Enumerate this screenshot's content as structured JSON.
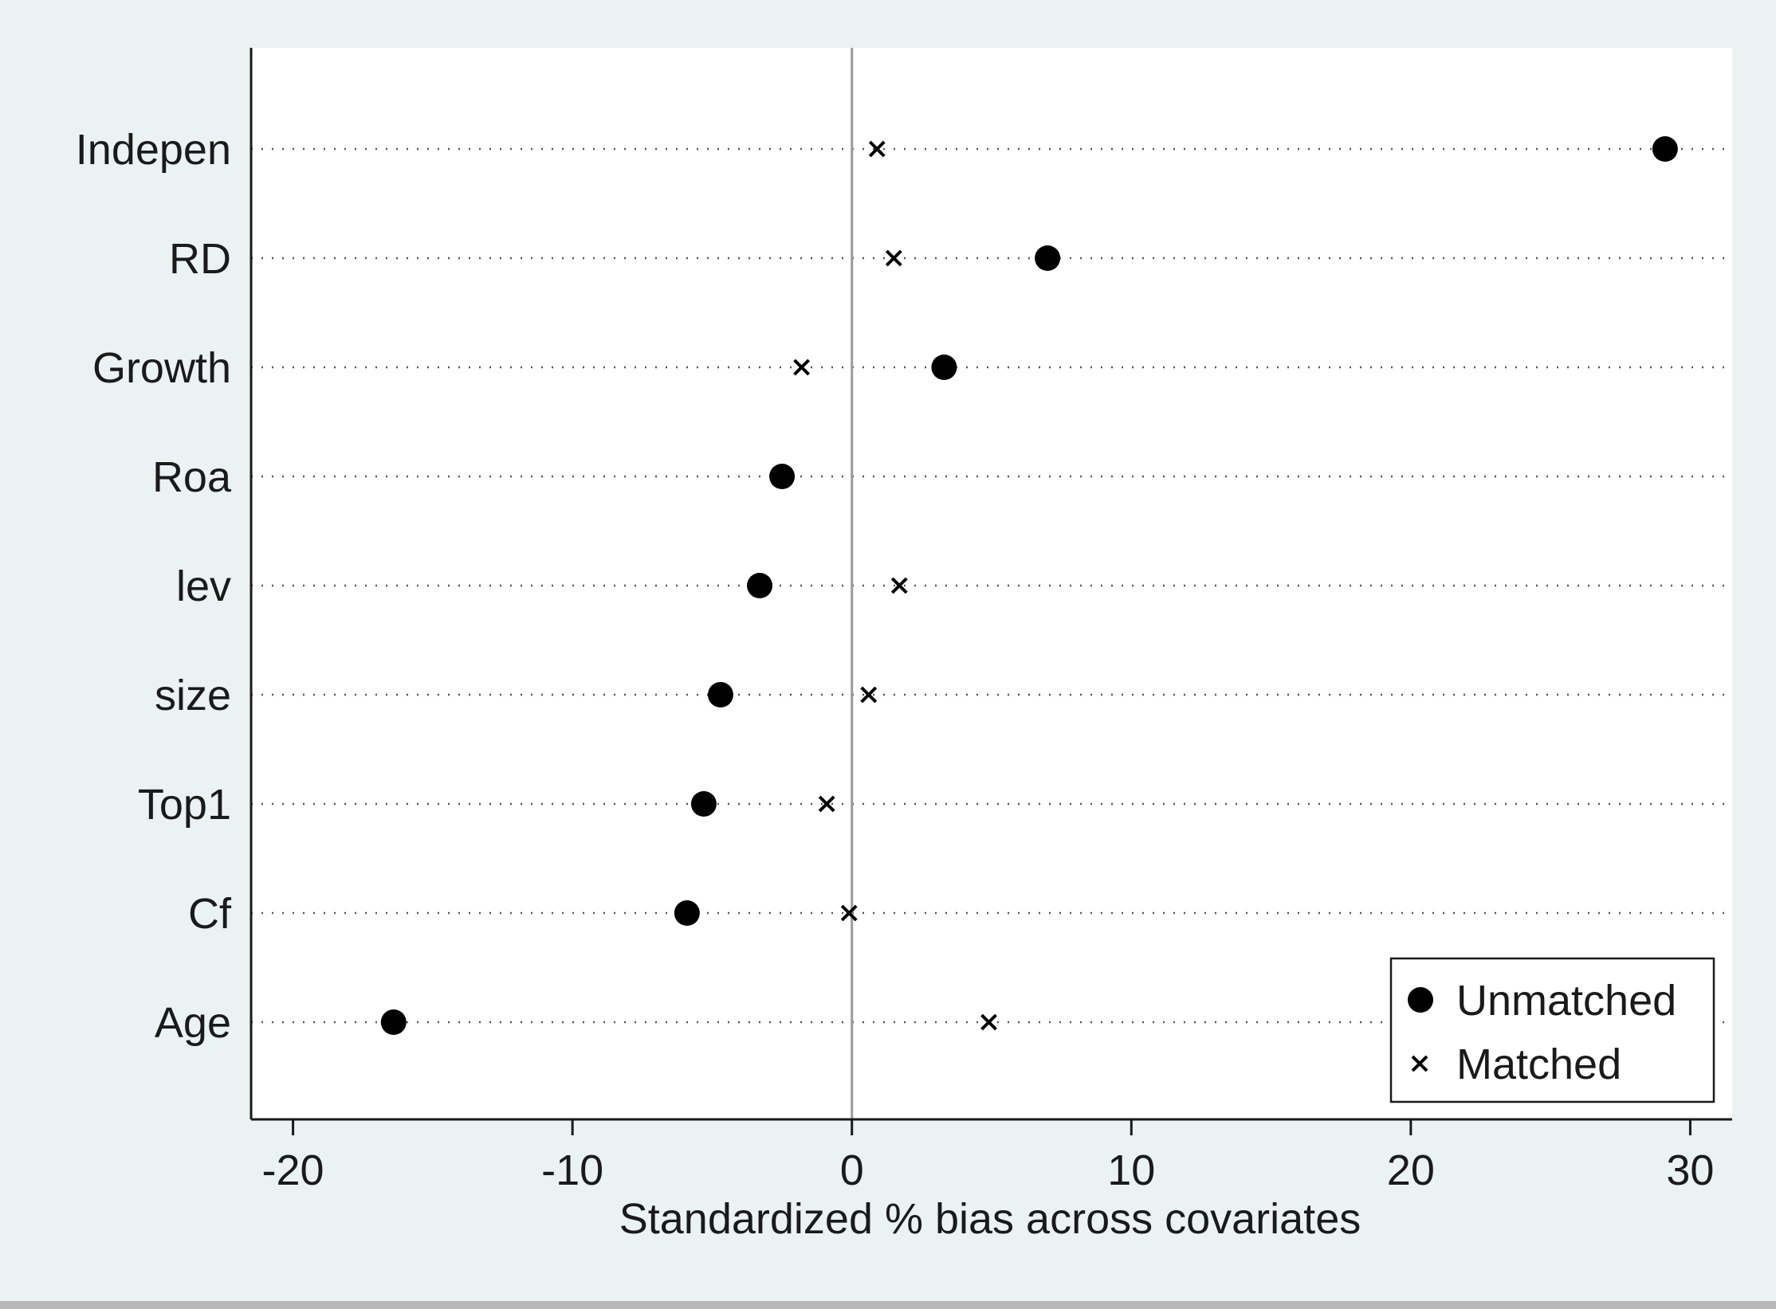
{
  "chart_data": {
    "type": "scatter",
    "orientation": "horizontal-dot",
    "title": "",
    "xlabel": "Standardized % bias across covariates",
    "ylabel": "",
    "xlim": [
      -21.5,
      31.5
    ],
    "xticks": [
      -20,
      -10,
      0,
      10,
      20,
      30
    ],
    "xtick_labels": [
      "-20",
      "-10",
      "0",
      "10",
      "20",
      "30"
    ],
    "categories": [
      "Indepen",
      "RD",
      "Growth",
      "Roa",
      "lev",
      "size",
      "Top1",
      "Cf",
      "Age"
    ],
    "series": [
      {
        "name": "Unmatched",
        "marker": "filled-circle",
        "values": [
          29.1,
          7.0,
          3.3,
          -2.5,
          -3.3,
          -4.7,
          -5.3,
          -5.9,
          -16.4
        ]
      },
      {
        "name": "Matched",
        "marker": "x",
        "values": [
          0.9,
          1.5,
          -1.8,
          null,
          1.7,
          0.6,
          -0.9,
          -0.1,
          4.9
        ]
      }
    ],
    "reference_line_x": 0,
    "grid": "dotted horizontal",
    "legend": {
      "placement": "bottom-right",
      "entries": [
        "Unmatched",
        "Matched"
      ]
    },
    "colors": {
      "marker": "#000000",
      "background": "#eaf2f3",
      "plot": "#ffffff",
      "refline": "#9a9a9a"
    }
  }
}
